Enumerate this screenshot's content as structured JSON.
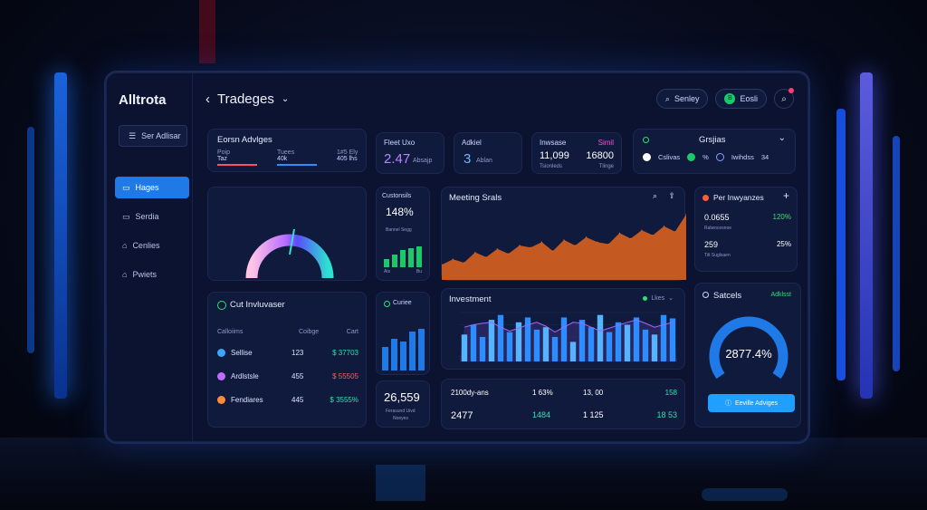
{
  "app": {
    "brand": "Alltrota",
    "title": "Tradeges"
  },
  "sidebar": {
    "button_label": "Ser Adlisar",
    "items": [
      {
        "label": "Hages",
        "active": true
      },
      {
        "label": "Serdia"
      },
      {
        "label": "Cenlies"
      },
      {
        "label": "Pwiets"
      }
    ]
  },
  "topbar": {
    "search_label": "Senley",
    "user_label": "Eosli",
    "user_initial": "B"
  },
  "cards": {
    "advices": {
      "title": "Eorsn Advlges",
      "cols": [
        {
          "label": "Poip",
          "value": "Taz"
        },
        {
          "label": "Tuees",
          "value": "40k"
        },
        {
          "label": "1#5 Ely",
          "value": "405 lhs"
        }
      ]
    },
    "fleet": {
      "label": "Fleet Uxo",
      "value": "2.47",
      "sub": "Absajp"
    },
    "added": {
      "label": "Adkiel",
      "value": "3",
      "sub": "Ablan"
    },
    "invest": {
      "label": "Inwsase",
      "tag": "Simil",
      "value1": "11,099",
      "value2": "16800",
      "sub1": "Tsionleds",
      "sub2": "Tlinge"
    },
    "groups": {
      "title": "Grsjias",
      "items": [
        "Cslivas",
        "%",
        "Iwihdss",
        "34"
      ]
    },
    "gauge": {
      "colors": [
        "#b86cff",
        "#ffc4e6",
        "#2a5bff",
        "#2ee0d0"
      ]
    },
    "customers": {
      "label": "Custonsils",
      "value": "148%",
      "sub": "Bannel Segg",
      "bars_label_l": "Ais",
      "bars_label_r": "Bu",
      "bars": [
        0.35,
        0.55,
        0.75,
        0.8,
        0.9
      ]
    },
    "meeting": {
      "title": "Meeting Srals"
    },
    "per": {
      "title": "Per Inwyanzes",
      "rows": [
        {
          "name": "0.0655",
          "pct": "120%",
          "sub": "Ralwocesnoe"
        },
        {
          "name": "259",
          "pct": "25%",
          "sub": "Tiit Suglsaen"
        }
      ]
    },
    "cut": {
      "title": "Cut Invluvaser",
      "headers": [
        "Calloiims",
        "Coibge",
        "Cart"
      ],
      "rows": [
        {
          "name": "Sellise",
          "v1": "123",
          "v2": "$ 37703",
          "color": "#3aa7ff"
        },
        {
          "name": "Ardlstsle",
          "v1": "455",
          "v2": "$ 55505",
          "color": "#c06bff"
        },
        {
          "name": "Fendiares",
          "v1": "445",
          "v2": "$ 3555%",
          "color": "#ff8a3a"
        }
      ]
    },
    "curiee": {
      "label": "Curiee"
    },
    "total": {
      "value": "26,559",
      "sub1": "Ferasund Uivd",
      "sub2": "Noeyes"
    },
    "investment": {
      "title": "Investment",
      "legend": "Lkes"
    },
    "stats": [
      {
        "a": "2100dy-ans",
        "b": "1 63%",
        "c": "13, 00",
        "d": "158"
      },
      {
        "a": "2477",
        "b": "1484",
        "c": "1 125",
        "d": "18 53"
      }
    ],
    "sales": {
      "title": "Satcels",
      "tag": "Adklsst",
      "value": "2877.4%",
      "button": "Eeville Adviges"
    }
  },
  "chart_data": [
    {
      "type": "area",
      "title": "Meeting Srals",
      "values": [
        0.22,
        0.3,
        0.25,
        0.4,
        0.33,
        0.45,
        0.38,
        0.5,
        0.47,
        0.55,
        0.42,
        0.58,
        0.5,
        0.62,
        0.55,
        0.52,
        0.68,
        0.6,
        0.72,
        0.65,
        0.78,
        0.7,
        0.95
      ],
      "color": "#c45a22"
    },
    {
      "type": "bar",
      "title": "Investment",
      "series": [
        {
          "values": [
            0.55,
            0.75,
            0.5,
            0.85,
            0.95,
            0.6,
            0.8,
            0.9,
            0.65,
            0.7,
            0.5,
            0.9,
            0.4,
            0.85,
            0.7,
            0.95,
            0.6,
            0.8,
            0.75,
            0.9,
            0.65,
            0.55,
            0.95,
            0.88
          ],
          "color": "#2d8dff"
        }
      ],
      "line": [
        0.7,
        0.75,
        0.78,
        0.8,
        0.7,
        0.62,
        0.68,
        0.75,
        0.8,
        0.72,
        0.6,
        0.7,
        0.8,
        0.78,
        0.7,
        0.62,
        0.68,
        0.74,
        0.8,
        0.85,
        0.78,
        0.7,
        0.75,
        0.8
      ],
      "line_color": "#9b6bff"
    }
  ]
}
